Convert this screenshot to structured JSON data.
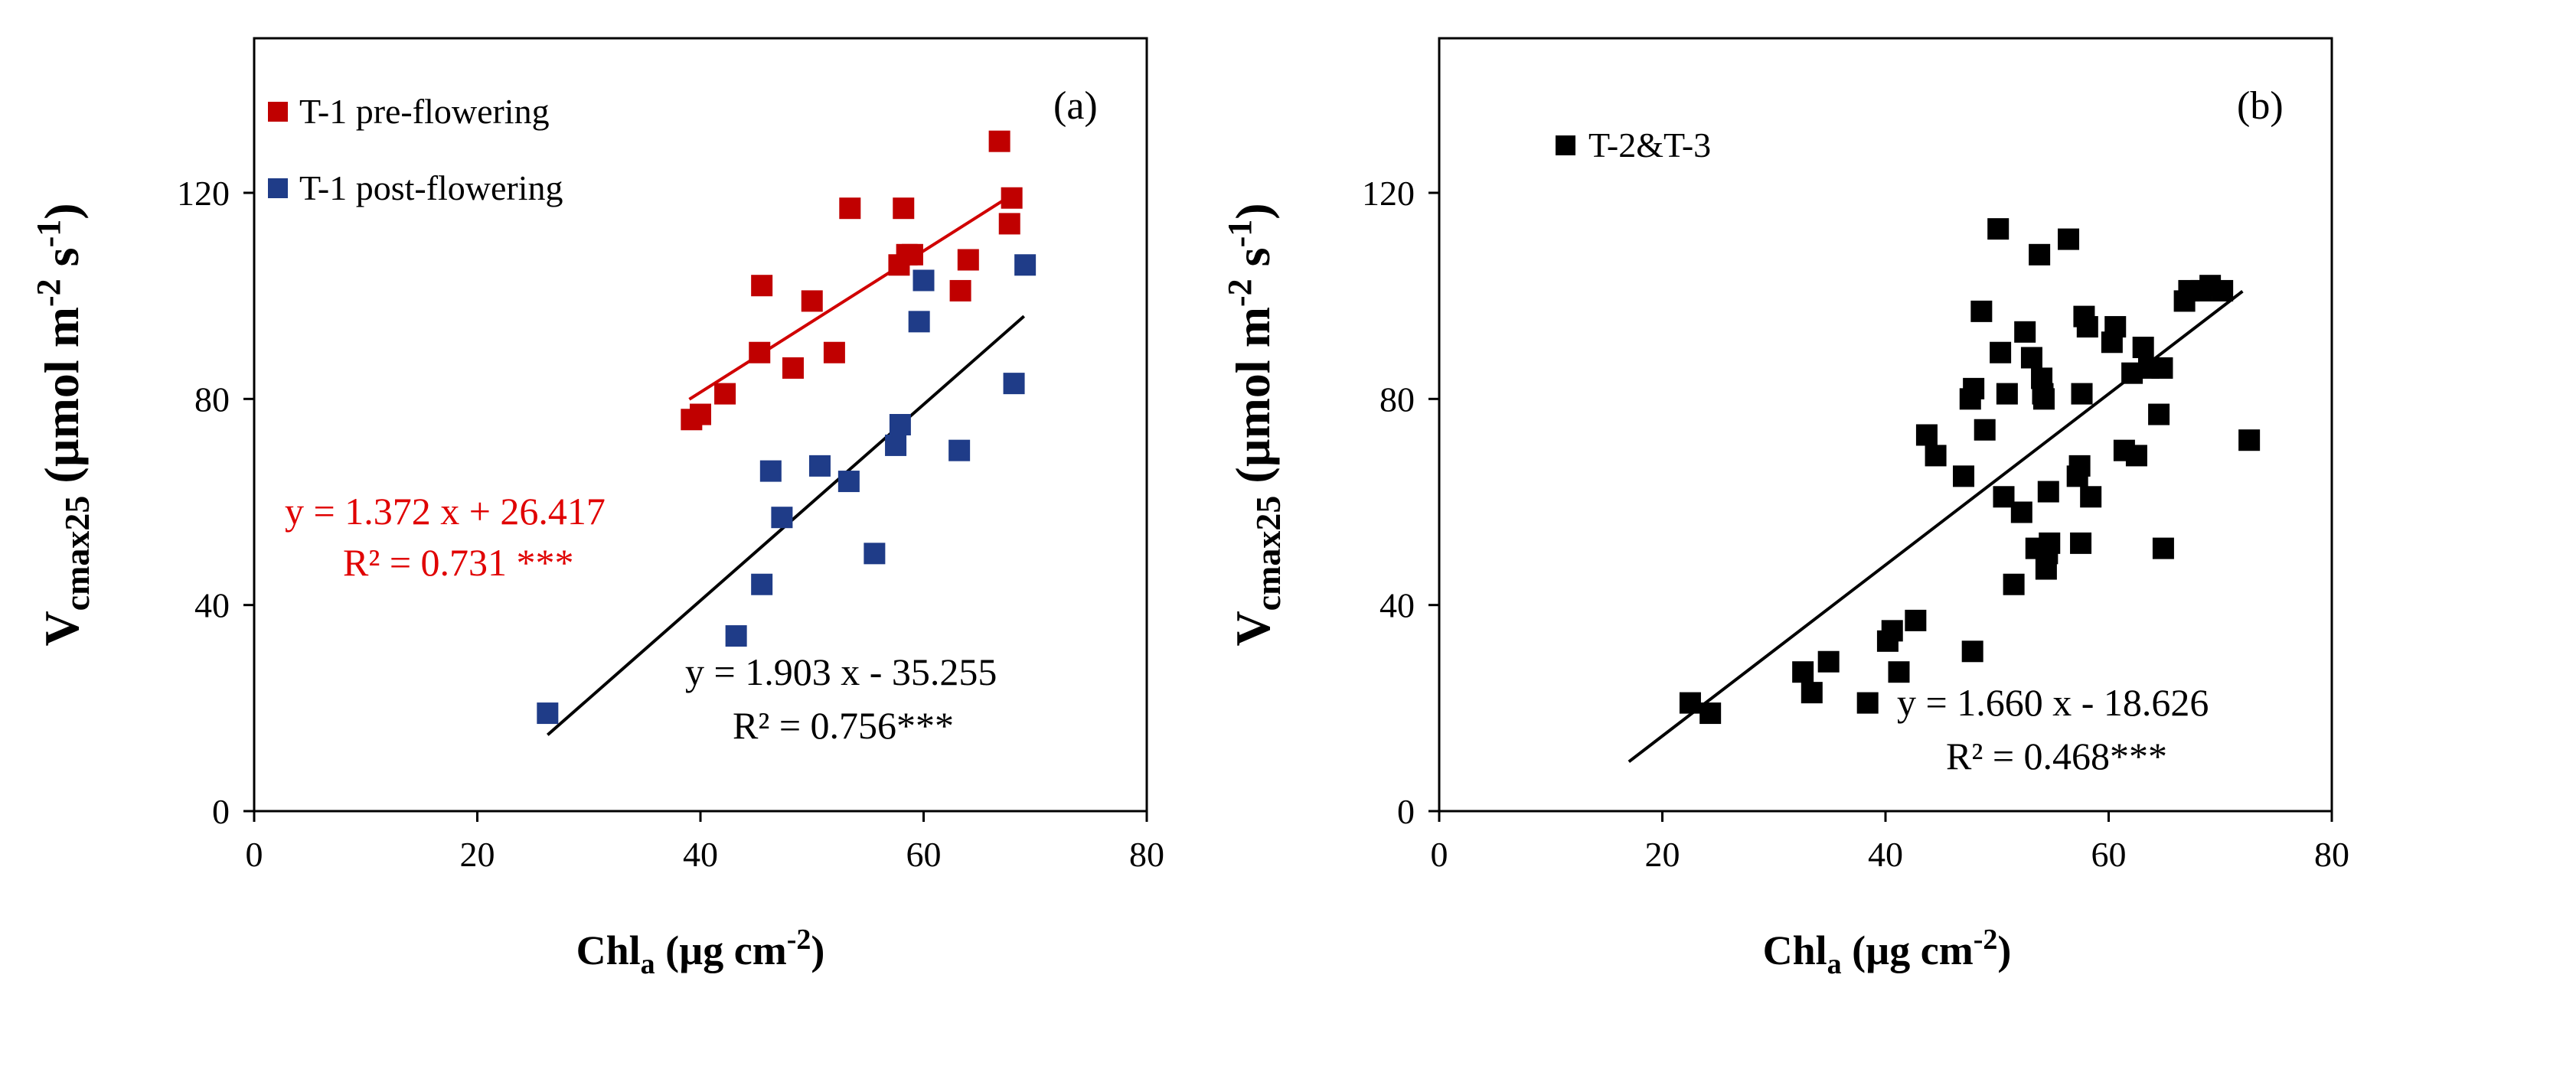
{
  "chart_data": [
    {
      "type": "scatter",
      "panel_label": "(a)",
      "xlim": [
        0,
        80
      ],
      "ylim": [
        0,
        150
      ],
      "xticks": [
        "0",
        "20",
        "40",
        "60",
        "80"
      ],
      "yticks": [
        "0",
        "40",
        "80",
        "120"
      ],
      "xlabel_main": "Chl",
      "xlabel_sub": "a",
      "xlabel_rest": " (µg cm",
      "xlabel_sup": "-2",
      "xlabel_close": ")",
      "ylabel_main": "V",
      "ylabel_sub": "cmax25",
      "ylabel_unit": " (µmol m",
      "ylabel_sup1": "-2",
      "ylabel_s": " s",
      "ylabel_sup2": "-1",
      "ylabel_close": ")",
      "series": [
        {
          "name": "T-1 pre-flowering",
          "color": "#C00000",
          "x": [
            39.2,
            40.0,
            42.2,
            45.3,
            45.5,
            48.3,
            50.0,
            52.0,
            53.4,
            57.8,
            58.2,
            58.5,
            59.0,
            63.3,
            64.0,
            66.8,
            67.7,
            67.9
          ],
          "y": [
            76,
            77,
            81,
            89,
            102,
            86,
            99,
            89,
            117,
            106,
            117,
            108,
            108,
            101,
            107,
            130,
            114,
            119
          ],
          "fit": {
            "slope": 1.372,
            "intercept": 26.417,
            "x_range": [
              39,
              68
            ]
          },
          "equation": "y = 1.372 x + 26.417",
          "r2": "R² = 0.731 ***"
        },
        {
          "name": "T-1 post-flowering",
          "color": "#1F3C88",
          "x": [
            26.3,
            43.2,
            45.5,
            46.3,
            47.3,
            50.7,
            53.3,
            55.6,
            57.5,
            57.9,
            59.6,
            60.0,
            63.2,
            68.1,
            69.1
          ],
          "y": [
            19,
            34,
            44,
            66,
            57,
            67,
            64,
            50,
            71,
            75,
            95,
            103,
            70,
            83,
            106
          ],
          "fit": {
            "slope": 1.903,
            "intercept": -35.255,
            "x_range": [
              26.3,
              69
            ]
          },
          "equation": "y = 1.903 x - 35.255",
          "r2": "R² = 0.756***"
        }
      ]
    },
    {
      "type": "scatter",
      "panel_label": "(b)",
      "xlim": [
        0,
        80
      ],
      "ylim": [
        0,
        150
      ],
      "xticks": [
        "0",
        "20",
        "40",
        "60",
        "80"
      ],
      "yticks": [
        "0",
        "40",
        "80",
        "120"
      ],
      "xlabel_main": "Chl",
      "xlabel_sub": "a",
      "xlabel_rest": " (µg cm",
      "xlabel_sup": "-2",
      "xlabel_close": ")",
      "ylabel_main": "V",
      "ylabel_sub": "cmax25",
      "ylabel_unit": " (µmol m",
      "ylabel_sup1": "-2",
      "ylabel_s": " s",
      "ylabel_sup2": "-1",
      "ylabel_close": ")",
      "series": [
        {
          "name": "T-2&T-3",
          "color": "#000000",
          "x": [
            22.5,
            24.3,
            32.6,
            33.4,
            34.9,
            38.4,
            40.2,
            40.6,
            41.2,
            42.7,
            43.7,
            44.5,
            47.0,
            47.6,
            47.8,
            47.9,
            48.6,
            48.9,
            50.1,
            50.3,
            50.6,
            50.9,
            51.5,
            52.2,
            52.5,
            53.1,
            53.5,
            53.8,
            54.0,
            54.1,
            54.2,
            54.4,
            54.5,
            54.6,
            54.7,
            56.4,
            57.2,
            57.4,
            57.5,
            57.6,
            57.8,
            58.1,
            58.4,
            60.3,
            60.6,
            61.4,
            62.1,
            62.5,
            63.1,
            63.6,
            64.5,
            64.8,
            64.9,
            66.8,
            67.2,
            68.3,
            69.1,
            70.2,
            72.6
          ],
          "y": [
            21,
            19,
            27,
            23,
            29,
            21,
            33,
            35,
            27,
            37,
            73,
            69,
            65,
            80,
            31,
            82,
            97,
            74,
            113,
            89,
            61,
            81,
            44,
            58,
            93,
            88,
            51,
            108,
            84,
            81,
            80,
            47,
            50,
            62,
            52,
            111,
            65,
            67,
            52,
            81,
            96,
            94,
            61,
            91,
            94,
            70,
            85,
            69,
            90,
            86,
            77,
            86,
            51,
            99,
            101,
            101,
            102,
            101,
            72
          ],
          "fit": {
            "slope": 1.66,
            "intercept": -18.626,
            "x_range": [
              17,
              72
            ]
          },
          "equation": "y = 1.660 x - 18.626",
          "r2": "R² = 0.468***"
        }
      ]
    }
  ]
}
